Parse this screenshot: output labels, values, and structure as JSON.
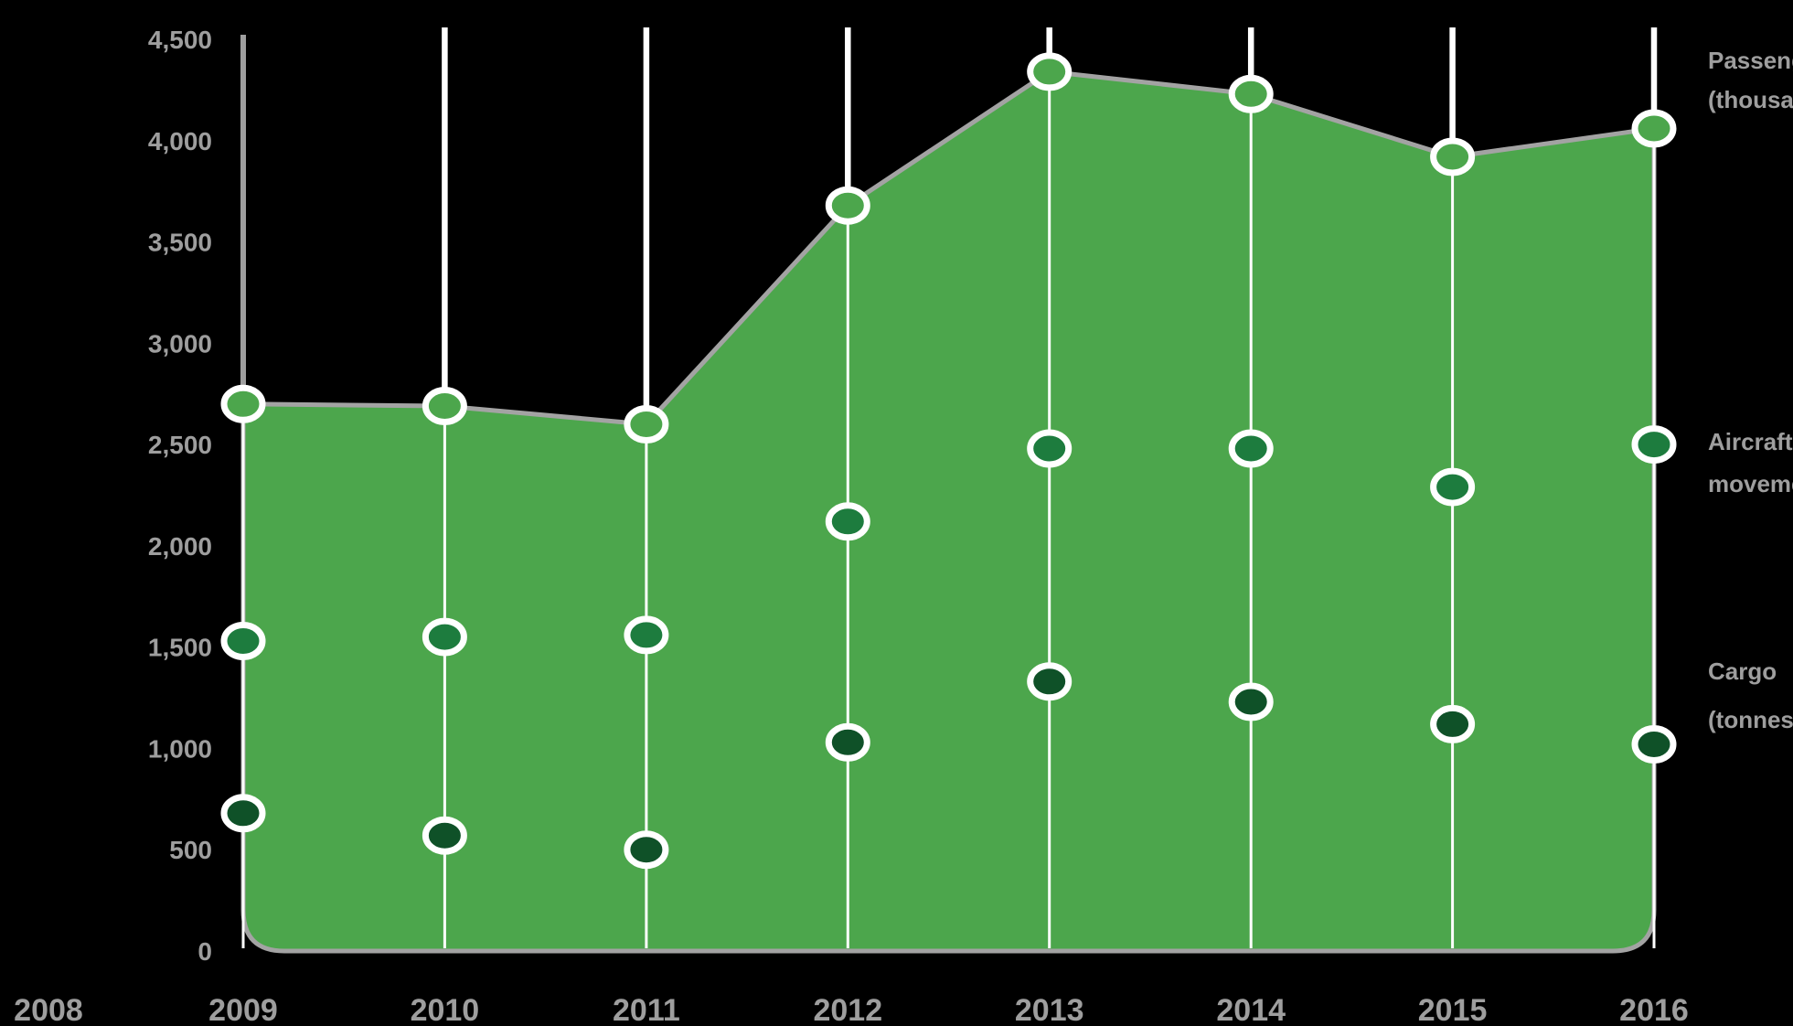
{
  "background": "#000000",
  "chart_data": {
    "type": "area",
    "title": "",
    "legend_position": "right",
    "grid": "vertical-white-lines",
    "colors": {
      "area": "#4ca64c",
      "area_outline": "#a3a3a3",
      "axis": "#9e9e9e",
      "text": "#9e9e9e",
      "gridline": "#ffffff",
      "dot_ring": "#ffffff"
    },
    "x_axis": {
      "lead_label": "2008",
      "categories": [
        "2009",
        "2010",
        "2011",
        "2012",
        "2013",
        "2014",
        "2015",
        "2016"
      ]
    },
    "y_axis": {
      "ylim": [
        0,
        4500
      ],
      "tick_values": [
        4500,
        4000,
        3500,
        3000,
        2500,
        2000,
        1500,
        1000,
        500,
        0
      ],
      "tick_labels": [
        "4,500",
        "4,000",
        "3,500",
        "3,000",
        "2,500",
        "2,000",
        "1,500",
        "1,000",
        "500",
        "0"
      ]
    },
    "series": [
      {
        "id": "passengers",
        "label_lines": [
          "Passengers",
          "(thousands)"
        ],
        "style": "area-edge-dots",
        "dot_color": "#4ca64c",
        "values": [
          2700,
          2690,
          2600,
          3680,
          4340,
          4230,
          3920,
          4060
        ]
      },
      {
        "id": "movements",
        "label_lines": [
          "Aircraft",
          "movements"
        ],
        "style": "dots",
        "dot_color": "#1d7c3e",
        "values": [
          1530,
          1550,
          1560,
          2120,
          2480,
          2480,
          2290,
          2500
        ]
      },
      {
        "id": "cargo",
        "label_lines": [
          "Cargo",
          "(tonnes)"
        ],
        "style": "dots",
        "dot_color": "#0f5128",
        "values": [
          680,
          570,
          500,
          1030,
          1330,
          1230,
          1120,
          1020
        ]
      }
    ]
  }
}
